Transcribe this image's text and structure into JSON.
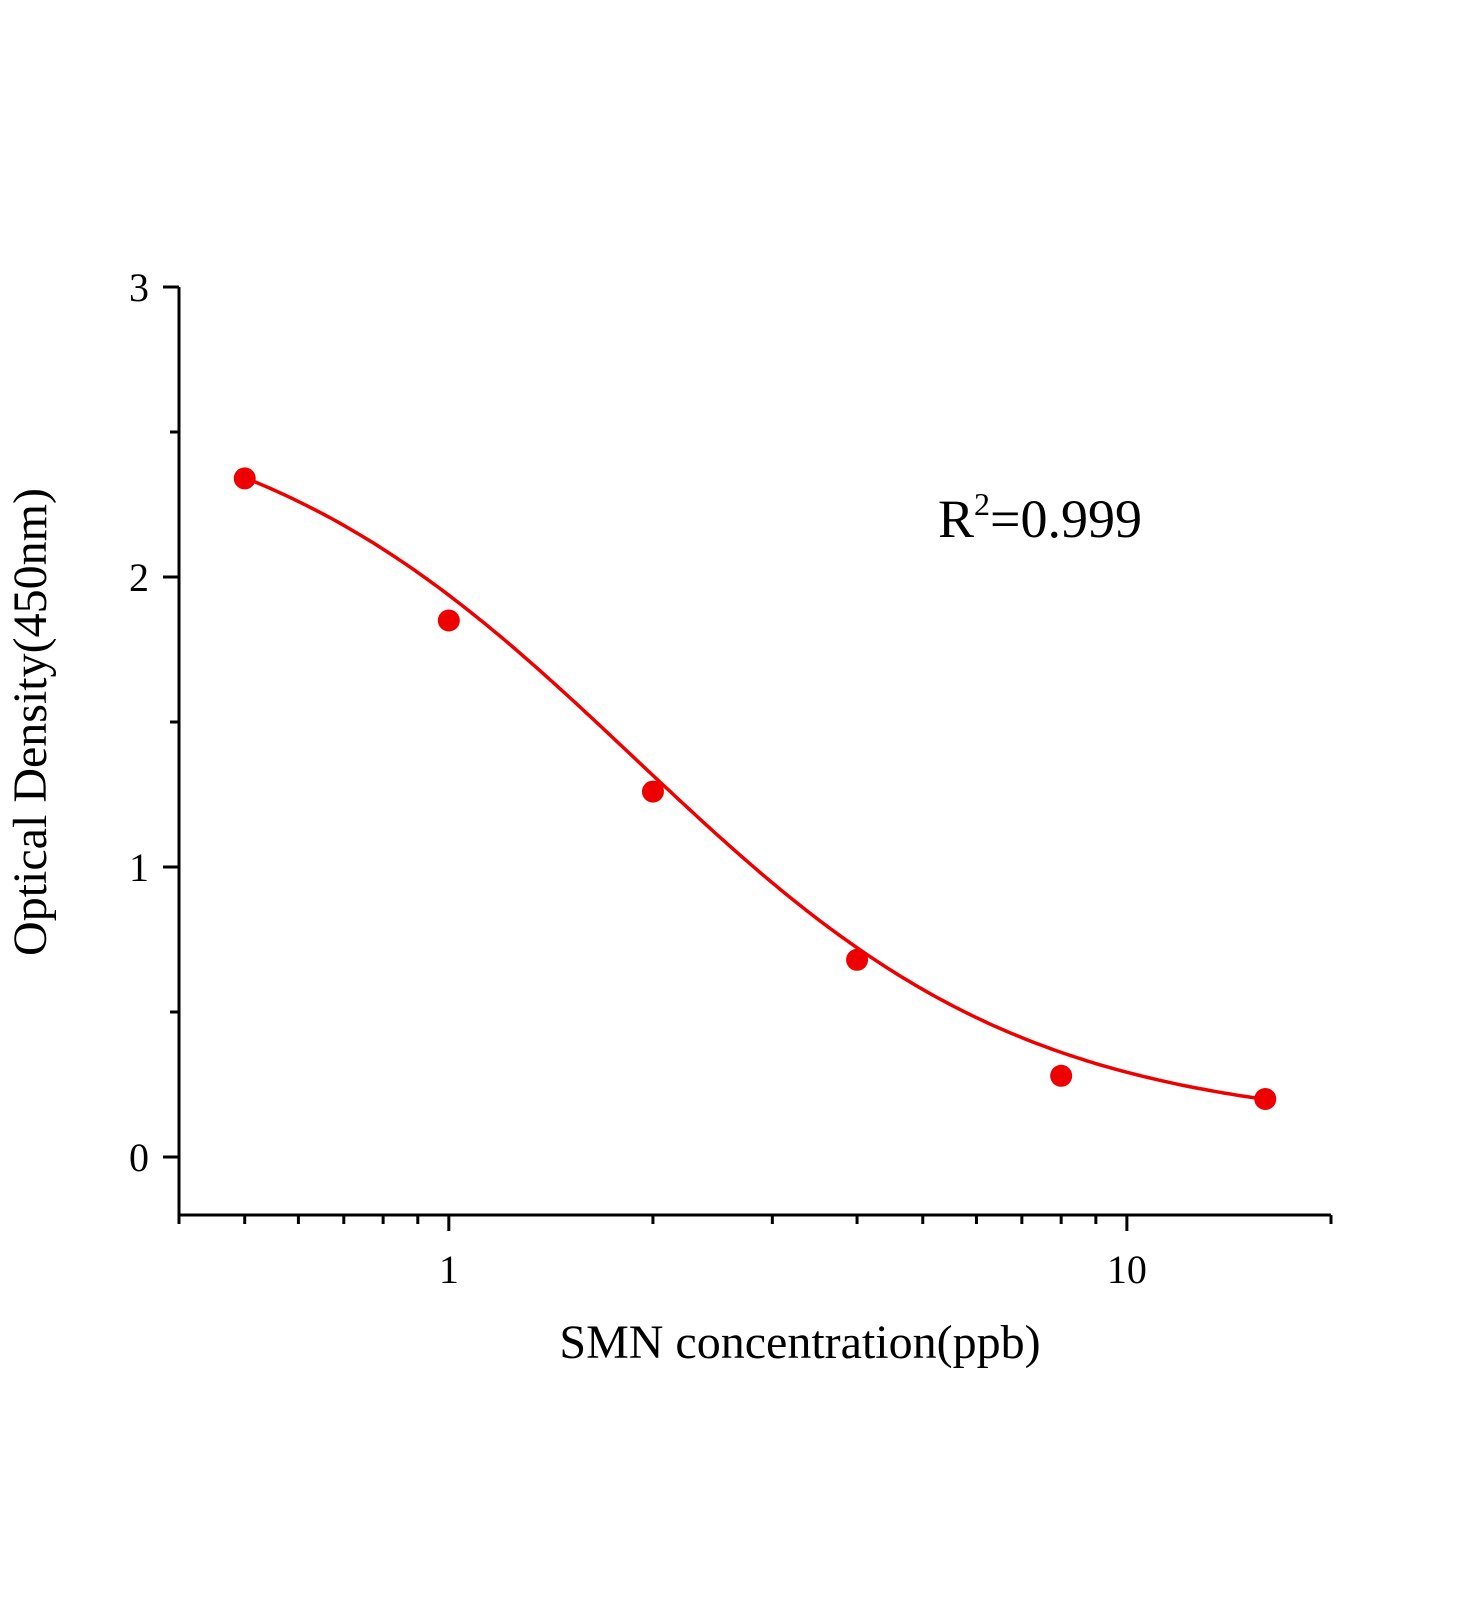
{
  "chart_data": {
    "type": "scatter",
    "title": "",
    "xlabel": "SMN concentration(ppb)",
    "ylabel": "Optical Density(450nm)",
    "xscale": "log",
    "xlim": [
      0.4,
      20
    ],
    "ylim": [
      -0.2,
      3
    ],
    "xticks": [
      {
        "value": 1,
        "label": "1"
      },
      {
        "value": 10,
        "label": "10"
      }
    ],
    "yticks": [
      {
        "value": 0,
        "label": "0"
      },
      {
        "value": 1,
        "label": "1"
      },
      {
        "value": 2,
        "label": "2"
      },
      {
        "value": 3,
        "label": "3"
      }
    ],
    "grid": false,
    "annotation": {
      "base": "R",
      "sup": "2",
      "rest": "=0.999"
    },
    "series": [
      {
        "x": [
          0.5,
          1,
          2,
          4,
          8,
          16
        ],
        "y": [
          2.34,
          1.85,
          1.26,
          0.68,
          0.28,
          0.2
        ],
        "marker": "circle",
        "color": "#ee0000",
        "fit": "4-parameter logistic curve"
      }
    ]
  }
}
